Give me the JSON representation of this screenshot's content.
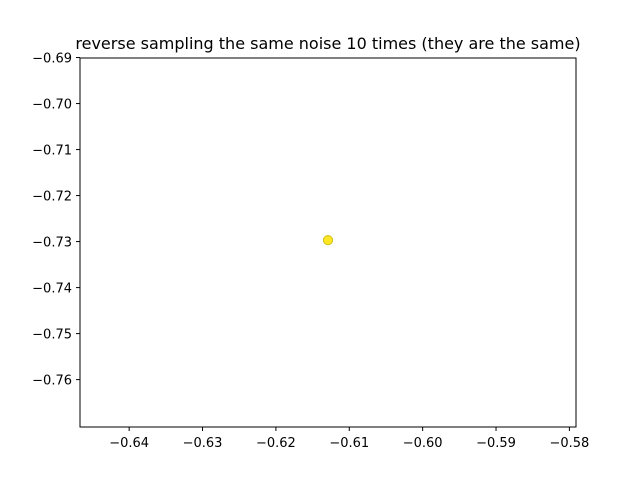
{
  "chart_data": {
    "type": "scatter",
    "title": "reverse sampling the same noise 10 times (they are the same)",
    "xlabel": "",
    "ylabel": "",
    "xlim": [
      -0.6467,
      -0.5791
    ],
    "ylim": [
      -0.7703,
      -0.6901
    ],
    "x_ticks": [
      -0.64,
      -0.63,
      -0.62,
      -0.61,
      -0.6,
      -0.59,
      -0.58
    ],
    "y_ticks": [
      -0.69,
      -0.7,
      -0.71,
      -0.72,
      -0.73,
      -0.74,
      -0.75,
      -0.76
    ],
    "x_tick_labels": [
      "−0.64",
      "−0.63",
      "−0.62",
      "−0.61",
      "−0.60",
      "−0.59",
      "−0.58"
    ],
    "y_tick_labels": [
      "−0.69",
      "−0.70",
      "−0.71",
      "−0.72",
      "−0.73",
      "−0.74",
      "−0.75",
      "−0.76"
    ],
    "grid": false,
    "legend": "none",
    "points": [
      {
        "x": -0.6129,
        "y": -0.7297
      },
      {
        "x": -0.6129,
        "y": -0.7297
      },
      {
        "x": -0.6129,
        "y": -0.7297
      },
      {
        "x": -0.6129,
        "y": -0.7297
      },
      {
        "x": -0.6129,
        "y": -0.7297
      },
      {
        "x": -0.6129,
        "y": -0.7297
      },
      {
        "x": -0.6129,
        "y": -0.7297
      },
      {
        "x": -0.6129,
        "y": -0.7297
      },
      {
        "x": -0.6129,
        "y": -0.7297
      },
      {
        "x": -0.6129,
        "y": -0.7297
      }
    ],
    "point_color": "#fde725",
    "point_edge_color": "#d4c21f"
  }
}
